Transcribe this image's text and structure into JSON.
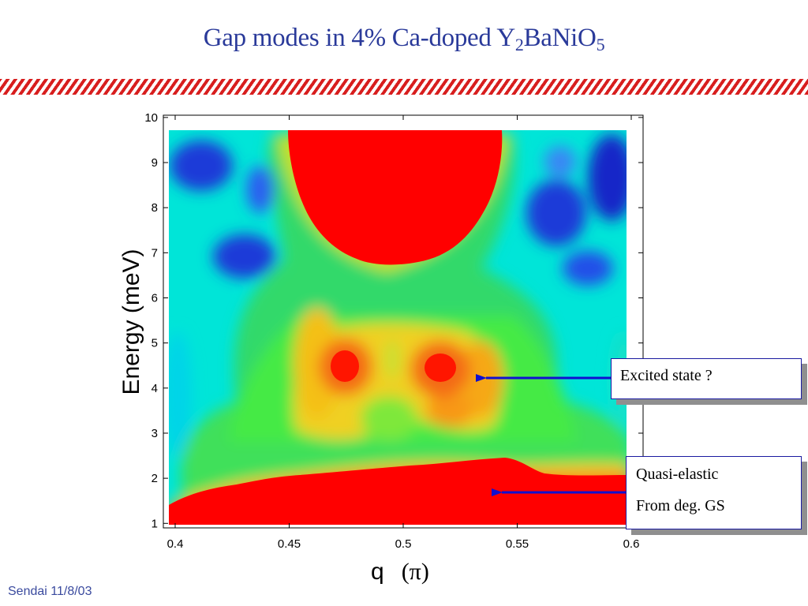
{
  "slide": {
    "title_main": "Gap modes in 4% Ca-doped Y",
    "title_sub1": "2",
    "title_mid": "BaNiO",
    "title_sub2": "5",
    "footer": "Sendai 11/8/03"
  },
  "annotations": {
    "excited": "Excited state ?",
    "quasi_line1": "Quasi-elastic",
    "quasi_line2": "From deg. GS",
    "arrow_color": "#1010d0"
  },
  "chart_data": {
    "type": "heatmap",
    "colormap": "jet",
    "xlabel_main": "q",
    "xlabel_unit": "(π)",
    "ylabel": "Energy  (meV)",
    "xlim": [
      0.4,
      0.6
    ],
    "ylim": [
      0.9,
      10.05
    ],
    "data_extent_x": [
      0.398,
      0.598
    ],
    "data_extent_y": [
      0.9,
      9.85
    ],
    "x_ticks": [
      "0.4",
      "0.45",
      "0.5",
      "0.55",
      "0.6"
    ],
    "x_tick_values": [
      0.4,
      0.45,
      0.5,
      0.55,
      0.6
    ],
    "y_ticks": [
      "1",
      "2",
      "3",
      "4",
      "5",
      "6",
      "7",
      "8",
      "9",
      "10"
    ],
    "y_tick_values": [
      1,
      2,
      3,
      4,
      5,
      6,
      7,
      8,
      9,
      10
    ],
    "features": [
      {
        "name": "excited-state-peak-left",
        "x": 0.476,
        "y": 4.4
      },
      {
        "name": "excited-state-peak-right",
        "x": 0.518,
        "y": 4.4
      },
      {
        "name": "high-energy-continuum",
        "x": 0.5,
        "y_min": 7.0
      },
      {
        "name": "quasi-elastic-band",
        "y_max": 2.0
      }
    ]
  }
}
